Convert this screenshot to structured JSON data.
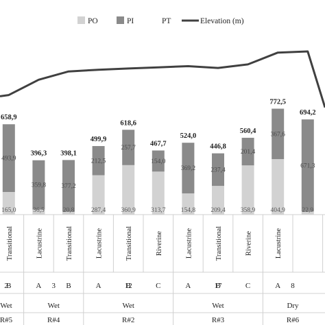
{
  "chart_data": {
    "type": "bar",
    "stacked": true,
    "legend": {
      "position": "top",
      "entries": [
        "PO",
        "PI",
        "PT",
        "Elevation (m)"
      ]
    },
    "colors": {
      "PO": "#d2d2d2",
      "PI": "#8a8a8a",
      "PT": "#ffffff",
      "Elevation": "#404040"
    },
    "groups": [
      {
        "number": "2",
        "season": "Wet",
        "reservoir": "R#5",
        "bars": [
          {
            "category": "Transitional",
            "letter": "B",
            "PO": 165.0,
            "PI": 493.9,
            "PT": 658.9,
            "labels": {
              "PO": "165,0",
              "PI": "493,9",
              "PT": "658,9"
            },
            "elevation": 0.74
          }
        ]
      },
      {
        "number": "3",
        "season": "Wet",
        "reservoir": "R#4",
        "bars": [
          {
            "category": "Lacustrine",
            "letter": "A",
            "PO": 36.5,
            "PI": 359.8,
            "PT": 396.3,
            "labels": {
              "PO": "36,5",
              "PI": "359,8",
              "PT": "396,3"
            },
            "elevation": 0.48
          },
          {
            "category": "Transitional",
            "letter": "B",
            "PO": 20.8,
            "PI": 377.2,
            "PT": 398.1,
            "labels": {
              "PO": "20,8",
              "PI": "377,2",
              "PT": "398,1"
            },
            "elevation": 0.34
          }
        ]
      },
      {
        "number": "12",
        "season": "Wet",
        "reservoir": "R#2",
        "bars": [
          {
            "category": "Lacustrine",
            "letter": "A",
            "PO": 287.4,
            "PI": 212.5,
            "PT": 499.9,
            "labels": {
              "PO": "287,4",
              "PI": "212,5",
              "PT": "499,9"
            },
            "elevation": 0.31
          },
          {
            "category": "Transitional",
            "letter": "B",
            "PO": 360.9,
            "PI": 257.7,
            "PT": 618.6,
            "labels": {
              "PO": "360,9",
              "PI": "257,7",
              "PT": "618,6"
            },
            "elevation": 0.29
          },
          {
            "category": "Riverine",
            "letter": "C",
            "PO": 313.7,
            "PI": 154.0,
            "PT": 467.7,
            "labels": {
              "PO": "313,7",
              "PI": "154,0",
              "PT": "467,7"
            },
            "elevation": 0.27
          }
        ]
      },
      {
        "number": "17",
        "season": "Wet",
        "reservoir": "R#3",
        "bars": [
          {
            "category": "Lacustrine",
            "letter": "A",
            "PO": 154.8,
            "PI": 369.2,
            "PT": 524.0,
            "labels": {
              "PO": "154,8",
              "PI": "369,2",
              "PT": "524,0"
            },
            "elevation": 0.25
          },
          {
            "category": "Transitional",
            "letter": "B",
            "PO": 209.4,
            "PI": 237.4,
            "PT": 446.8,
            "labels": {
              "PO": "209,4",
              "PI": "237,4",
              "PT": "446,8"
            },
            "elevation": 0.28
          },
          {
            "category": "Riverine",
            "letter": "C",
            "PO": 358.9,
            "PI": 201.4,
            "PT": 560.4,
            "labels": {
              "PO": "358,9",
              "PI": "201,4",
              "PT": "560,4"
            },
            "elevation": 0.22
          }
        ]
      },
      {
        "number": "8",
        "season": "Dry",
        "reservoir": "R#6",
        "bars": [
          {
            "category": "Lacustrine",
            "letter": "A",
            "PO": 404.9,
            "PI": 367.6,
            "PT": 772.5,
            "labels": {
              "PO": "404,9",
              "PI": "367,6",
              "PT": "772,5"
            },
            "elevation": 0.02
          },
          {
            "category": "",
            "letter": "",
            "PO": 22.9,
            "PI": 671.3,
            "PT": 694.2,
            "labels": {
              "PO": "22,9",
              "PI": "671,3",
              "PT": "694,2"
            },
            "elevation": 0.0
          }
        ]
      }
    ]
  }
}
